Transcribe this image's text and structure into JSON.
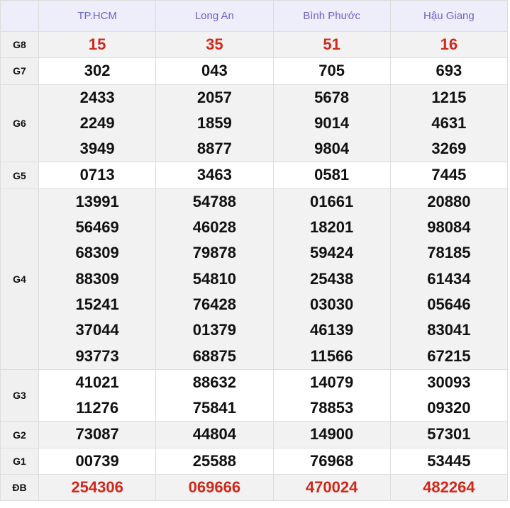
{
  "header": {
    "corner": "",
    "columns": [
      "TP.HCM",
      "Long An",
      "Bình Phước",
      "Hậu Giang"
    ]
  },
  "rows": [
    {
      "label": "G8",
      "values": [
        [
          "15"
        ],
        [
          "35"
        ],
        [
          "51"
        ],
        [
          "16"
        ]
      ]
    },
    {
      "label": "G7",
      "values": [
        [
          "302"
        ],
        [
          "043"
        ],
        [
          "705"
        ],
        [
          "693"
        ]
      ]
    },
    {
      "label": "G6",
      "values": [
        [
          "2433",
          "2249",
          "3949"
        ],
        [
          "2057",
          "1859",
          "8877"
        ],
        [
          "5678",
          "9014",
          "9804"
        ],
        [
          "1215",
          "4631",
          "3269"
        ]
      ]
    },
    {
      "label": "G5",
      "values": [
        [
          "0713"
        ],
        [
          "3463"
        ],
        [
          "0581"
        ],
        [
          "7445"
        ]
      ]
    },
    {
      "label": "G4",
      "values": [
        [
          "13991",
          "56469",
          "68309",
          "88309",
          "15241",
          "37044",
          "93773"
        ],
        [
          "54788",
          "46028",
          "79878",
          "54810",
          "76428",
          "01379",
          "68875"
        ],
        [
          "01661",
          "18201",
          "59424",
          "25438",
          "03030",
          "46139",
          "11566"
        ],
        [
          "20880",
          "98084",
          "78185",
          "61434",
          "05646",
          "83041",
          "67215"
        ]
      ]
    },
    {
      "label": "G3",
      "values": [
        [
          "41021",
          "11276"
        ],
        [
          "88632",
          "75841"
        ],
        [
          "14079",
          "78853"
        ],
        [
          "30093",
          "09320"
        ]
      ]
    },
    {
      "label": "G2",
      "values": [
        [
          "73087"
        ],
        [
          "44804"
        ],
        [
          "14900"
        ],
        [
          "57301"
        ]
      ]
    },
    {
      "label": "G1",
      "values": [
        [
          "00739"
        ],
        [
          "25588"
        ],
        [
          "76968"
        ],
        [
          "53445"
        ]
      ]
    },
    {
      "label": "ĐB",
      "values": [
        [
          "254306"
        ],
        [
          "069666"
        ],
        [
          "470024"
        ],
        [
          "482264"
        ]
      ]
    }
  ]
}
